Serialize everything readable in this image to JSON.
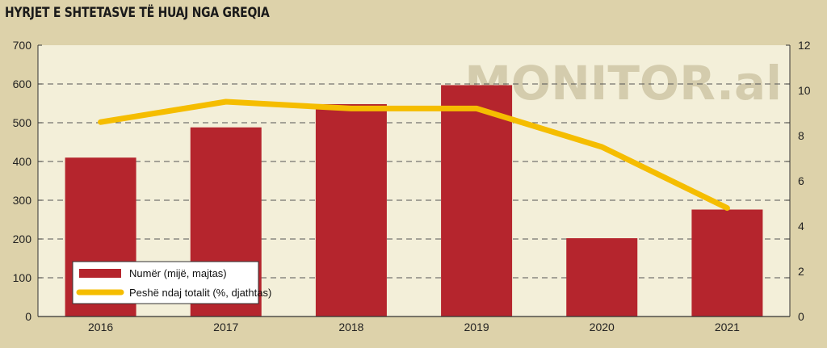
{
  "title": "HYRJET E SHTETASVE TË HUAJ NGA GREQIA",
  "watermark": "MONITOR.al",
  "colors": {
    "bar": "#b5252d",
    "line": "#f5bd00",
    "plot_bg": "#f3efd9",
    "page_bg": "#ddd2aa"
  },
  "chart_data": {
    "type": "bar",
    "categories": [
      "2016",
      "2017",
      "2018",
      "2019",
      "2020",
      "2021"
    ],
    "series": [
      {
        "name": "Numër (mijë, majtas)",
        "type": "bar",
        "axis": "left",
        "values": [
          410,
          488,
          548,
          597,
          202,
          276
        ]
      },
      {
        "name": "Peshë ndaj totalit (%, djathtas)",
        "type": "line",
        "axis": "right",
        "values": [
          8.6,
          9.5,
          9.2,
          9.2,
          7.5,
          4.8
        ]
      }
    ],
    "y_left": {
      "ylim": [
        0,
        700
      ],
      "ticks": [
        "0",
        "100",
        "200",
        "300",
        "400",
        "500",
        "600",
        "700"
      ]
    },
    "y_right": {
      "ylim": [
        0,
        12
      ],
      "ticks": [
        "0",
        "2",
        "4",
        "6",
        "8",
        "10",
        "12"
      ]
    },
    "grid": "horizontal-dashed",
    "legend_position": "bottom-left"
  }
}
